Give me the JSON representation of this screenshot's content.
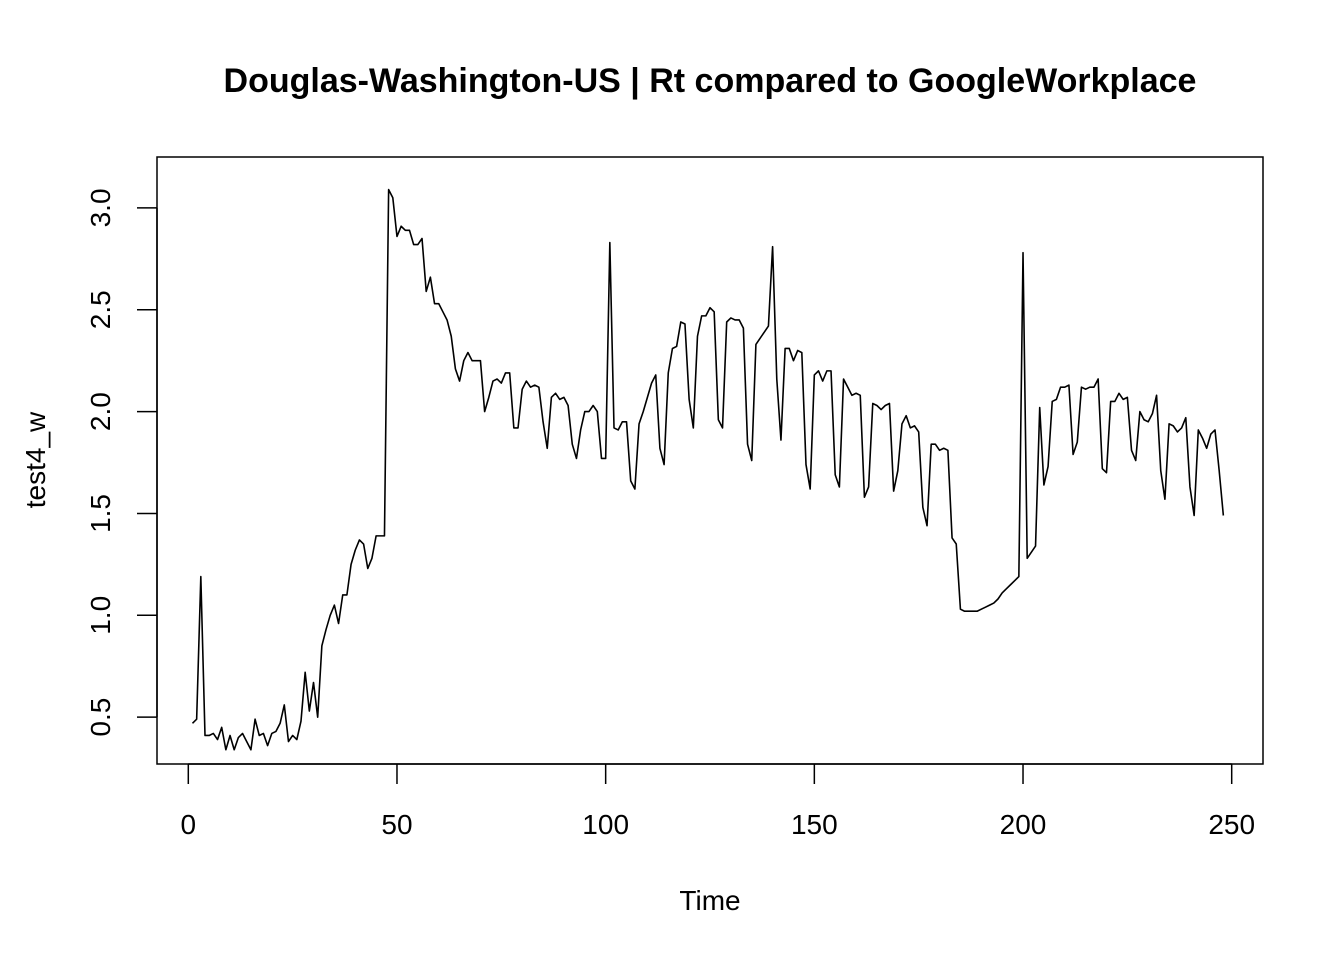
{
  "chart_data": {
    "type": "line",
    "title": "Douglas-Washington-US | Rt compared to GoogleWorkplace",
    "xlabel": "Time",
    "ylabel": "test4_w",
    "xlim": [
      -7.5,
      257.5
    ],
    "ylim": [
      0.27,
      3.25
    ],
    "x_ticks": [
      0,
      50,
      100,
      150,
      200,
      250
    ],
    "y_ticks": [
      0.5,
      1.0,
      1.5,
      2.0,
      2.5,
      3.0
    ],
    "x_tick_labels": [
      "0",
      "50",
      "100",
      "150",
      "200",
      "250"
    ],
    "y_tick_labels": [
      "0.5",
      "1.0",
      "1.5",
      "2.0",
      "2.5",
      "3.0"
    ],
    "line_color": "#000000",
    "grid": false,
    "x_start": 1,
    "series": [
      {
        "values": [
          0.47,
          0.49,
          1.19,
          0.41,
          0.41,
          0.42,
          0.39,
          0.45,
          0.34,
          0.41,
          0.34,
          0.4,
          0.42,
          0.38,
          0.34,
          0.49,
          0.41,
          0.42,
          0.36,
          0.42,
          0.43,
          0.47,
          0.56,
          0.38,
          0.41,
          0.39,
          0.48,
          0.72,
          0.53,
          0.67,
          0.5,
          0.85,
          0.93,
          1.0,
          1.05,
          0.96,
          1.1,
          1.1,
          1.25,
          1.32,
          1.37,
          1.35,
          1.23,
          1.28,
          1.39,
          1.39,
          1.39,
          3.09,
          3.05,
          2.86,
          2.91,
          2.89,
          2.89,
          2.82,
          2.82,
          2.85,
          2.59,
          2.66,
          2.53,
          2.53,
          2.49,
          2.45,
          2.37,
          2.21,
          2.15,
          2.25,
          2.29,
          2.25,
          2.25,
          2.25,
          2.0,
          2.07,
          2.15,
          2.16,
          2.14,
          2.19,
          2.19,
          1.92,
          1.92,
          2.11,
          2.15,
          2.12,
          2.13,
          2.12,
          1.95,
          1.82,
          2.07,
          2.09,
          2.06,
          2.07,
          2.03,
          1.84,
          1.77,
          1.91,
          2.0,
          2.0,
          2.03,
          2.0,
          1.77,
          1.77,
          2.83,
          1.92,
          1.91,
          1.95,
          1.95,
          1.66,
          1.62,
          1.94,
          2.0,
          2.07,
          2.14,
          2.18,
          1.82,
          1.74,
          2.19,
          2.31,
          2.32,
          2.44,
          2.43,
          2.06,
          1.92,
          2.37,
          2.47,
          2.47,
          2.51,
          2.49,
          1.96,
          1.92,
          2.44,
          2.46,
          2.45,
          2.45,
          2.41,
          1.84,
          1.76,
          2.33,
          2.36,
          2.39,
          2.42,
          2.81,
          2.16,
          1.86,
          2.31,
          2.31,
          2.25,
          2.3,
          2.29,
          1.74,
          1.62,
          2.18,
          2.2,
          2.15,
          2.2,
          2.2,
          1.69,
          1.63,
          2.16,
          2.12,
          2.08,
          2.09,
          2.08,
          1.58,
          1.63,
          2.04,
          2.03,
          2.01,
          2.03,
          2.04,
          1.61,
          1.71,
          1.94,
          1.98,
          1.92,
          1.93,
          1.9,
          1.53,
          1.44,
          1.84,
          1.84,
          1.81,
          1.82,
          1.81,
          1.38,
          1.35,
          1.03,
          1.02,
          1.02,
          1.02,
          1.02,
          1.03,
          1.04,
          1.05,
          1.06,
          1.08,
          1.11,
          1.13,
          1.15,
          1.17,
          1.19,
          2.78,
          1.28,
          1.31,
          1.34,
          2.02,
          1.64,
          1.73,
          2.05,
          2.06,
          2.12,
          2.12,
          2.13,
          1.79,
          1.85,
          2.12,
          2.11,
          2.12,
          2.12,
          2.16,
          1.72,
          1.7,
          2.05,
          2.05,
          2.09,
          2.06,
          2.07,
          1.81,
          1.76,
          2.0,
          1.96,
          1.95,
          1.99,
          2.08,
          1.71,
          1.57,
          1.94,
          1.93,
          1.9,
          1.92,
          1.97,
          1.63,
          1.49,
          1.91,
          1.87,
          1.82,
          1.89,
          1.91,
          1.71,
          1.49
        ]
      }
    ]
  }
}
